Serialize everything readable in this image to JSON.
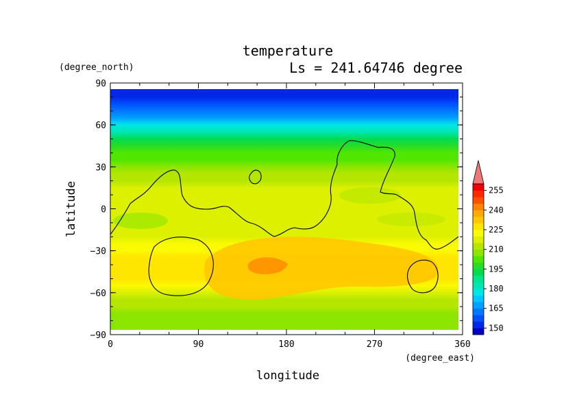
{
  "chart_data": {
    "type": "heatmap",
    "title": "temperature",
    "subtitle": "Ls = 241.64746 degree",
    "xlabel": "longitude",
    "ylabel": "latitude",
    "x_units": "(degree_east)",
    "y_units": "(degree_north)",
    "xlim": [
      0,
      360
    ],
    "ylim": [
      -90,
      90
    ],
    "x_ticks": [
      "0",
      "90",
      "180",
      "270",
      "360"
    ],
    "y_ticks": [
      "90",
      "60",
      "30",
      "0",
      "−30",
      "−60",
      "−90"
    ],
    "colorbar": {
      "labels": [
        "255",
        "240",
        "225",
        "210",
        "195",
        "180",
        "165",
        "150"
      ],
      "levels": [
        145,
        150,
        155,
        160,
        165,
        170,
        175,
        180,
        185,
        190,
        195,
        200,
        205,
        210,
        215,
        220,
        225,
        230,
        235,
        240,
        245,
        250,
        255,
        260
      ],
      "colors": [
        "#0000c8",
        "#0028e6",
        "#0050ff",
        "#0078ff",
        "#00a0ff",
        "#00c8ff",
        "#00e6e6",
        "#00e6b4",
        "#00e68c",
        "#00dc50",
        "#28dc28",
        "#50e600",
        "#8ce600",
        "#b4e600",
        "#dcf000",
        "#fafa00",
        "#ffe600",
        "#ffc800",
        "#ffaa00",
        "#ff8200",
        "#ff5000",
        "#ff2800",
        "#f00000",
        "#f07878"
      ],
      "extend": "max"
    },
    "grid": false,
    "zonal_profile": {
      "lat": [
        85,
        80,
        75,
        70,
        65,
        60,
        55,
        50,
        45,
        40,
        35,
        30,
        25,
        20,
        15,
        10,
        5,
        0,
        -5,
        -10,
        -15,
        -20,
        -25,
        -30,
        -35,
        -40,
        -45,
        -50,
        -55,
        -60,
        -65,
        -70,
        -75,
        -80,
        -85
      ],
      "temperature": [
        150,
        152,
        155,
        160,
        168,
        176,
        184,
        190,
        196,
        200,
        203,
        206,
        212,
        214,
        215,
        215,
        215,
        216,
        216,
        216,
        217,
        219,
        221,
        223,
        225,
        226,
        226,
        225,
        222,
        218,
        214,
        210,
        207,
        205,
        206
      ]
    },
    "warm_maximum": {
      "lon": 160,
      "lat": -40,
      "temperature": 237
    },
    "contour_note": "black line = topography contour"
  }
}
